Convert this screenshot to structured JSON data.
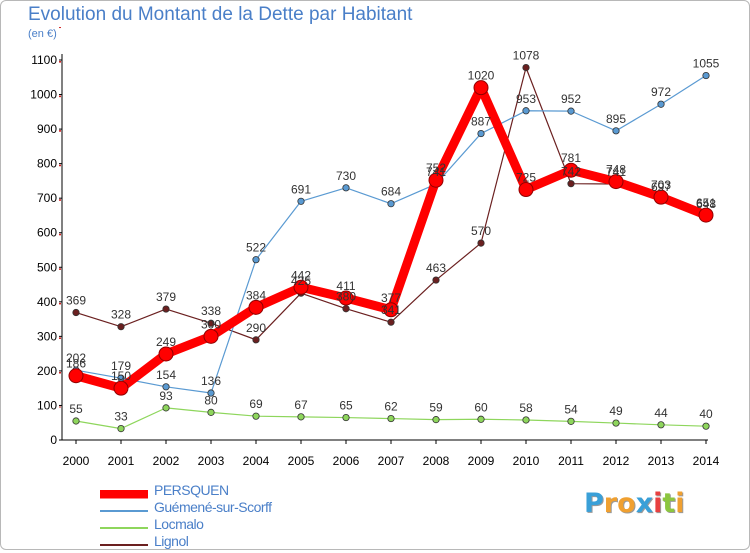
{
  "title": "Evolution du Montant de la Dette par Habitant",
  "subtitle": "(en €)",
  "logo": {
    "text": "Proxiti",
    "letters": [
      {
        "ch": "P",
        "color": "#3aa0d8"
      },
      {
        "ch": "r",
        "color": "#f0a030"
      },
      {
        "ch": "o",
        "color": "#f0a030"
      },
      {
        "ch": "x",
        "color": "#3aa0d8"
      },
      {
        "ch": "i",
        "color": "#e84040"
      },
      {
        "ch": "t",
        "color": "#8cc63f"
      },
      {
        "ch": "i",
        "color": "#f0a030"
      }
    ]
  },
  "chart_data": {
    "type": "line",
    "title": "Evolution du Montant de la Dette par Habitant",
    "subtitle": "(en €)",
    "x": [
      "2000",
      "2001",
      "2002",
      "2003",
      "2004",
      "2005",
      "2006",
      "2007",
      "2008",
      "2009",
      "2010",
      "2011",
      "2012",
      "2013",
      "2014"
    ],
    "ylim": [
      0,
      1100
    ],
    "yticks": [
      0,
      100,
      200,
      300,
      400,
      500,
      600,
      700,
      800,
      900,
      1000,
      1100
    ],
    "grid": false,
    "legend_position": "bottom-left",
    "series": [
      {
        "name": "Lignol",
        "color": "#6b2020",
        "emphasis": false,
        "values": [
          369,
          328,
          379,
          338,
          290,
          425,
          380,
          341,
          463,
          570,
          1078,
          742,
          741,
          697,
          648
        ]
      },
      {
        "name": "Locmalo",
        "color": "#8ed65c",
        "emphasis": false,
        "values": [
          55,
          33,
          93,
          80,
          69,
          67,
          65,
          62,
          59,
          60,
          58,
          54,
          49,
          44,
          40
        ]
      },
      {
        "name": "Guémené-sur-Scorff",
        "color": "#5a9ad2",
        "emphasis": false,
        "values": [
          202,
          179,
          154,
          136,
          522,
          691,
          730,
          684,
          741,
          887,
          953,
          952,
          895,
          972,
          1055
        ]
      },
      {
        "name": "PERSQUEN",
        "color": "#ff0000",
        "emphasis": true,
        "values": [
          186,
          150,
          249,
          300,
          384,
          442,
          411,
          377,
          752,
          1020,
          725,
          781,
          748,
          703,
          651
        ]
      }
    ],
    "legend_order": [
      "PERSQUEN",
      "Guémené-sur-Scorff",
      "Locmalo",
      "Lignol"
    ]
  }
}
